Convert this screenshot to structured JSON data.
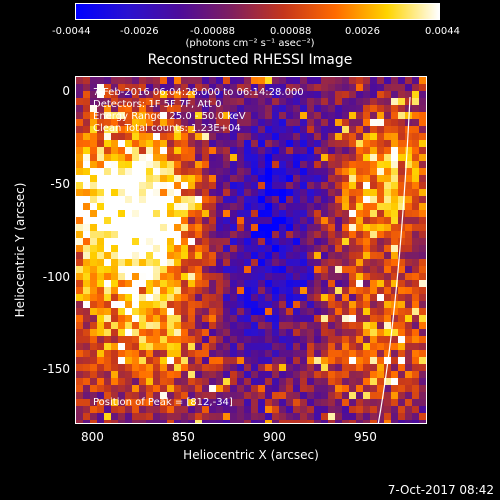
{
  "colorbar": {
    "tick_labels": [
      "-0.0044",
      "-0.0026",
      "-0.00088",
      "0.00088",
      "0.0026",
      "0.0044"
    ],
    "units": "(photons cm⁻² s⁻¹ asec⁻²)",
    "colors": [
      "#0000ff",
      "#2a11d0",
      "#4d0c9a",
      "#7f1f5f",
      "#c4361c",
      "#ff6a00",
      "#ffd400",
      "#ffffff"
    ]
  },
  "title": "Reconstructed RHESSI Image",
  "info": {
    "time_range": "7-Feb-2016 06:04:28.000 to 06:14:28.000",
    "detectors": "Detectors: 1F 5F 7F, Att 0",
    "energy": "Energy Range: 25.0 - 50.0 keV",
    "clean": "Clean    Total counts: 1.23E+04",
    "peak": "Position of Peak = [812,-34]"
  },
  "axes": {
    "xlabel": "Heliocentric X (arcsec)",
    "ylabel": "Heliocentric Y (arcsec)",
    "xticks": [
      "800",
      "850",
      "900",
      "950"
    ],
    "yticks": [
      "0",
      "-50",
      "-100",
      "-150"
    ]
  },
  "footer": {
    "timestamp": "7-Oct-2017 08:42"
  },
  "chart_data": {
    "type": "heatmap",
    "title": "Reconstructed RHESSI Image",
    "xlabel": "Heliocentric X (arcsec)",
    "ylabel": "Heliocentric Y (arcsec)",
    "xlim": [
      790,
      982
    ],
    "ylim": [
      -183,
      6
    ],
    "color_range": [
      -0.0044,
      0.0044
    ],
    "units": "photons cm⁻² s⁻¹ asec⁻²",
    "peak": [
      812,
      -34
    ],
    "limb": "solar limb arc near X ≈ 960-975 arcsec"
  }
}
